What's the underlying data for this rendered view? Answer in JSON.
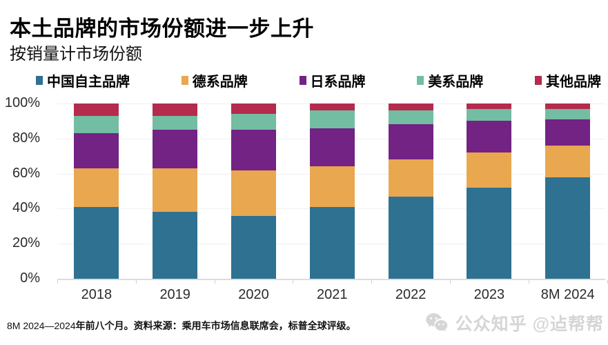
{
  "title": "本土品牌的市场份额进一步上升",
  "subtitle": "按销量计市场份额",
  "chart_data": {
    "type": "bar",
    "stacked": true,
    "title": "本土品牌的市场份额进一步上升",
    "subtitle": "按销量计市场份额",
    "categories": [
      "2018",
      "2019",
      "2020",
      "2021",
      "2022",
      "2023",
      "8M 2024"
    ],
    "series": [
      {
        "name": "中国自主品牌",
        "color": "#2e7191",
        "values": [
          41,
          38,
          36,
          41,
          47,
          52,
          58
        ]
      },
      {
        "name": "德系品牌",
        "color": "#e9a750",
        "values": [
          22,
          25,
          26,
          23,
          21,
          20,
          18
        ]
      },
      {
        "name": "日系品牌",
        "color": "#722384",
        "values": [
          20,
          22,
          23,
          22,
          20,
          18,
          15
        ]
      },
      {
        "name": "美系品牌",
        "color": "#73bda2",
        "values": [
          10,
          8,
          9,
          10,
          8,
          7,
          6
        ]
      },
      {
        "name": "其他品牌",
        "color": "#b42b4e",
        "values": [
          7,
          7,
          6,
          4,
          4,
          3,
          3
        ]
      }
    ],
    "xlabel": "",
    "ylabel": "",
    "ylim": [
      0,
      100
    ],
    "yticks": [
      0,
      20,
      40,
      60,
      80,
      100
    ],
    "ytick_suffix": "%",
    "legend_position": "top",
    "grid": true
  },
  "footnote": {
    "prefix": "8M 2024—2024",
    "body": "年前八个月。资料来源：乘用车市场信息联席会，标普全球评级。"
  },
  "watermark": {
    "icon": "wechat-icon",
    "text": "公众知乎 @迠帮帮"
  }
}
